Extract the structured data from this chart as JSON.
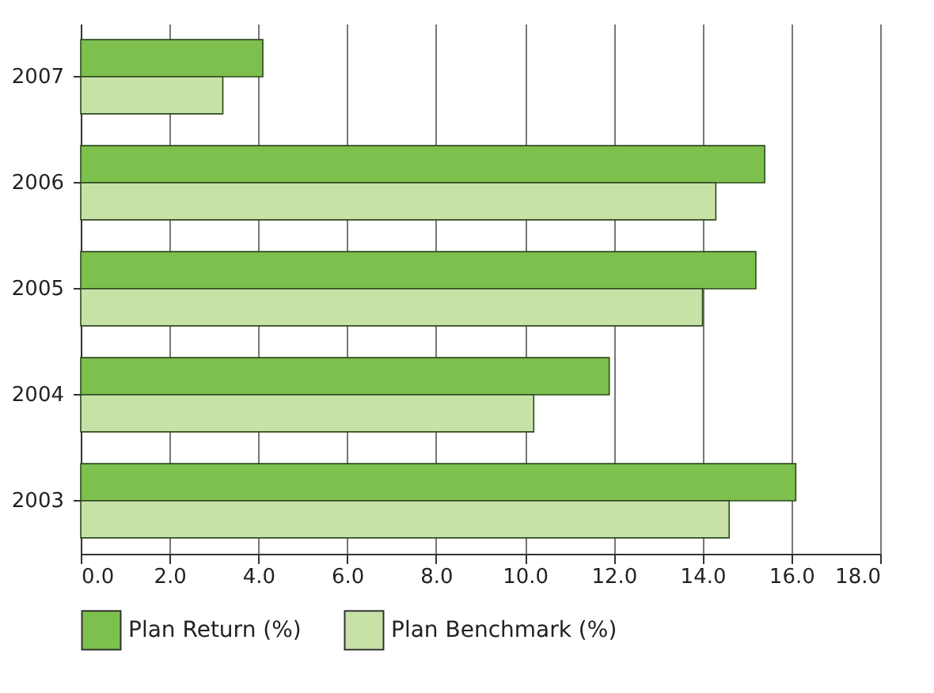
{
  "chart_data": {
    "type": "bar",
    "orientation": "horizontal",
    "categories": [
      "2007",
      "2006",
      "2005",
      "2004",
      "2003"
    ],
    "series": [
      {
        "name": "Plan Return (%)",
        "color": "#7dc04e",
        "values": [
          4.1,
          15.4,
          15.2,
          11.9,
          16.1
        ]
      },
      {
        "name": "Plan Benchmark (%)",
        "color": "#c7e1a7",
        "values": [
          3.2,
          14.3,
          14.0,
          10.2,
          14.6
        ]
      }
    ],
    "xlim": [
      0,
      18
    ],
    "xticks": [
      {
        "value": 0,
        "label": "0.0"
      },
      {
        "value": 2,
        "label": "2.0"
      },
      {
        "value": 4,
        "label": "4.0"
      },
      {
        "value": 6,
        "label": "6.0"
      },
      {
        "value": 8,
        "label": "8.0"
      },
      {
        "value": 10,
        "label": "10.0"
      },
      {
        "value": 12,
        "label": "12.0"
      },
      {
        "value": 14,
        "label": "14.0"
      },
      {
        "value": 16,
        "label": "16.0"
      },
      {
        "value": 18,
        "label": "18.0"
      }
    ],
    "grid": "x",
    "legend": "bottom"
  }
}
